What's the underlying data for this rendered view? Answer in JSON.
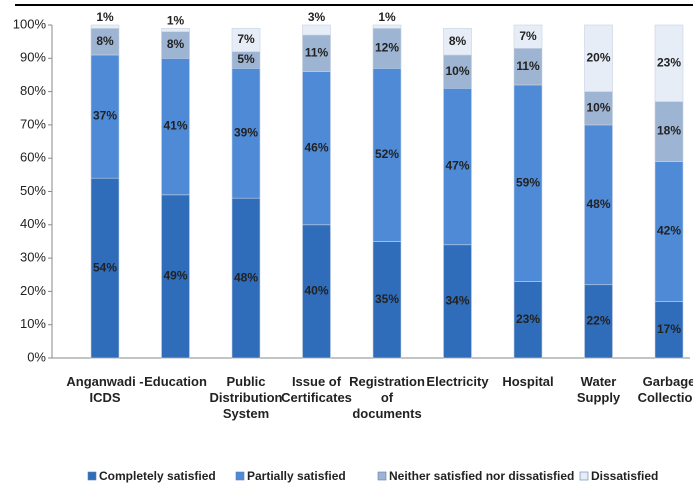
{
  "chart_data": {
    "type": "stacked_bar",
    "categories": [
      "Anganwadi - ICDS",
      "Education",
      "Public Distribution System",
      "Issue of Certificates",
      "Registration of documents",
      "Electricity",
      "Hospital",
      "Water Supply",
      "Garbage Collection"
    ],
    "series": [
      {
        "name": "Completely satisfied",
        "color": "#2f6cb9",
        "values": [
          54,
          49,
          48,
          40,
          35,
          34,
          23,
          22,
          17
        ],
        "value_labels": [
          "54%",
          "49%",
          "48%",
          "40%",
          "35%",
          "34%",
          "23%",
          "22%",
          "17%"
        ]
      },
      {
        "name": "Partially satisfied",
        "color": "#4e8ad6",
        "values": [
          37,
          41,
          39,
          46,
          52,
          47,
          59,
          48,
          42
        ],
        "value_labels": [
          "37%",
          "41%",
          "39%",
          "46%",
          "52%",
          "47%",
          "59%",
          "48%",
          "42%"
        ]
      },
      {
        "name": "Neither satisfied nor dissatisfied",
        "color": "#9db4d2",
        "values": [
          8,
          8,
          5,
          11,
          12,
          10,
          11,
          10,
          18
        ],
        "value_labels": [
          "8%",
          "8%",
          "5%",
          "11%",
          "12%",
          "10%",
          "11%",
          "10%",
          "18%"
        ]
      },
      {
        "name": "Dissatisfied",
        "color": "#e6edf7",
        "values": [
          1,
          1,
          7,
          3,
          1,
          8,
          7,
          20,
          23
        ],
        "value_labels": [
          "1%",
          "1%",
          "7%",
          "3%",
          "1%",
          "8%",
          "7%",
          "20%",
          "23%"
        ]
      }
    ],
    "ylim": [
      0,
      100
    ],
    "yticks": [
      {
        "value": 0,
        "label": "0%"
      },
      {
        "value": 10,
        "label": "10%"
      },
      {
        "value": 20,
        "label": "20%"
      },
      {
        "value": 30,
        "label": "30%"
      },
      {
        "value": 40,
        "label": "40%"
      },
      {
        "value": 50,
        "label": "50%"
      },
      {
        "value": 60,
        "label": "60%"
      },
      {
        "value": 70,
        "label": "70%"
      },
      {
        "value": 80,
        "label": "80%"
      },
      {
        "value": 90,
        "label": "90%"
      },
      {
        "value": 100,
        "label": "100%"
      }
    ],
    "grid": false,
    "legend": "bottom"
  }
}
